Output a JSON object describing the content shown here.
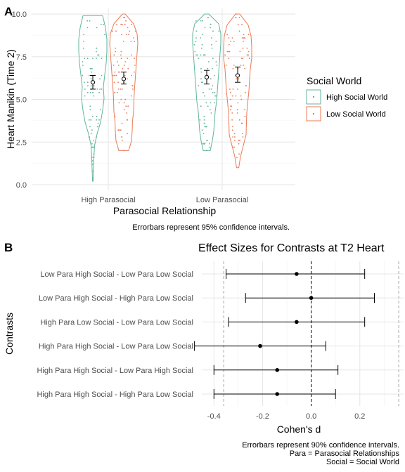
{
  "chart_data": [
    {
      "panel": "A",
      "type": "violin",
      "ylabel": "Heart Manikin (Time 2)",
      "xlabel": "Parasocial Relationship",
      "categories": [
        "High Parasocial",
        "Low Parasocial"
      ],
      "yticks": [
        "0.0",
        "2.5",
        "5.0",
        "7.5",
        "10.0"
      ],
      "ylim": [
        0,
        10
      ],
      "legend": {
        "title": "Social World",
        "position": "right",
        "entries": [
          "High Social World",
          "Low Social World"
        ]
      },
      "colors": {
        "high_social": "#5fb69c",
        "low_social": "#eb7a55"
      },
      "series": [
        {
          "name": "High Social World",
          "category": "High Parasocial",
          "range": [
            0.2,
            9.9
          ],
          "mean": 6.0,
          "ci": [
            5.6,
            6.4
          ]
        },
        {
          "name": "Low Social World",
          "category": "High Parasocial",
          "range": [
            2.0,
            10.0
          ],
          "mean": 6.2,
          "ci": [
            5.9,
            6.6
          ]
        },
        {
          "name": "High Social World",
          "category": "Low Parasocial",
          "range": [
            2.0,
            10.0
          ],
          "mean": 6.3,
          "ci": [
            5.9,
            6.7
          ]
        },
        {
          "name": "Low Social World",
          "category": "Low Parasocial",
          "range": [
            1.0,
            10.0
          ],
          "mean": 6.4,
          "ci": [
            6.0,
            6.9
          ]
        }
      ],
      "caption": "Errorbars represent 95% confidence intervals."
    },
    {
      "panel": "B",
      "type": "forest",
      "title": "Effect Sizes for Contrasts at T2 Heart",
      "xlabel": "Cohen's d",
      "ylabel": "Contrasts",
      "xticks": [
        "-0.4",
        "-0.2",
        "0.0",
        "0.2"
      ],
      "xlim": [
        -0.45,
        0.38
      ],
      "reference_lines": {
        "solid_dashed": 0.0,
        "light_dashed": [
          -0.36,
          0.36
        ]
      },
      "contrasts": [
        {
          "label": "Low Para High Social - Low Para Low Social",
          "d": -0.06,
          "ci": [
            -0.35,
            0.22
          ]
        },
        {
          "label": "Low Para High Social - High Para Low Social",
          "d": 0.0,
          "ci": [
            -0.27,
            0.26
          ]
        },
        {
          "label": "High Para Low Social - Low Para Low Social",
          "d": -0.06,
          "ci": [
            -0.34,
            0.22
          ]
        },
        {
          "label": "High Para High Social - Low Para Low Social",
          "d": -0.21,
          "ci": [
            -0.48,
            0.06
          ]
        },
        {
          "label": "High Para High Social - Low Para High Social",
          "d": -0.14,
          "ci": [
            -0.4,
            0.11
          ]
        },
        {
          "label": "High Para High Social - High Para Low Social",
          "d": -0.14,
          "ci": [
            -0.4,
            0.1
          ]
        }
      ],
      "caption": [
        "Errorbars represent 90% confidence intervals.",
        "Para = Parasocial Relationships",
        "Social = Social World"
      ]
    }
  ]
}
